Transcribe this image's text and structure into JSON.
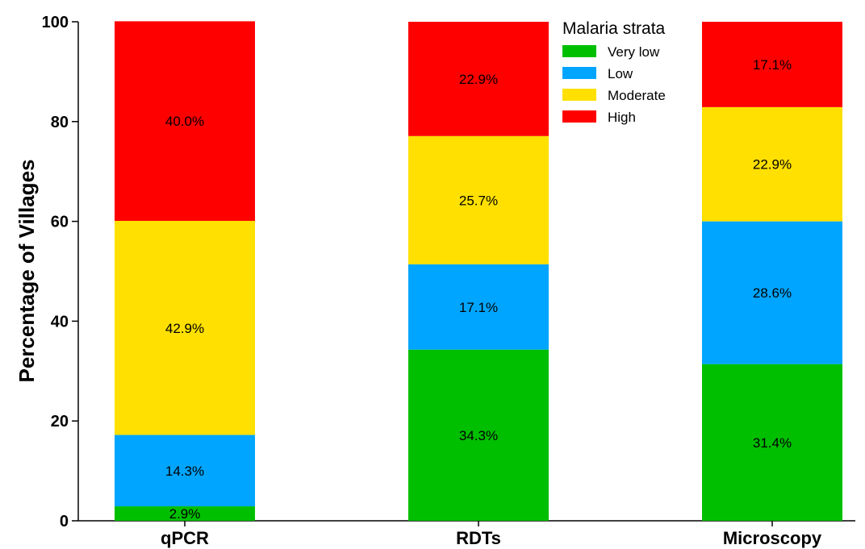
{
  "chart_data": {
    "type": "bar",
    "stacked": true,
    "categories": [
      "qPCR",
      "RDTs",
      "Microscopy"
    ],
    "series": [
      {
        "name": "Very low",
        "color": "#00bf00",
        "values": [
          2.9,
          34.3,
          31.4
        ],
        "labels": [
          "2.9%",
          "34.3%",
          "31.4%"
        ]
      },
      {
        "name": "Low",
        "color": "#00a5ff",
        "values": [
          14.3,
          17.1,
          28.6
        ],
        "labels": [
          "14.3%",
          "17.1%",
          "28.6%"
        ]
      },
      {
        "name": "Moderate",
        "color": "#ffe000",
        "values": [
          42.9,
          25.7,
          22.9
        ],
        "labels": [
          "42.9%",
          "25.7%",
          "22.9%"
        ]
      },
      {
        "name": "High",
        "color": "#ff0000",
        "values": [
          40.0,
          22.9,
          17.1
        ],
        "labels": [
          "40.0%",
          "22.9%",
          "17.1%"
        ]
      }
    ],
    "ylabel": "Percentage of Villages",
    "xlabel": "",
    "ylim": [
      0,
      100
    ],
    "yticks": [
      0,
      20,
      40,
      60,
      80,
      100
    ],
    "legend": {
      "title": "Malaria strata",
      "position": "top-right"
    },
    "grid": false
  }
}
